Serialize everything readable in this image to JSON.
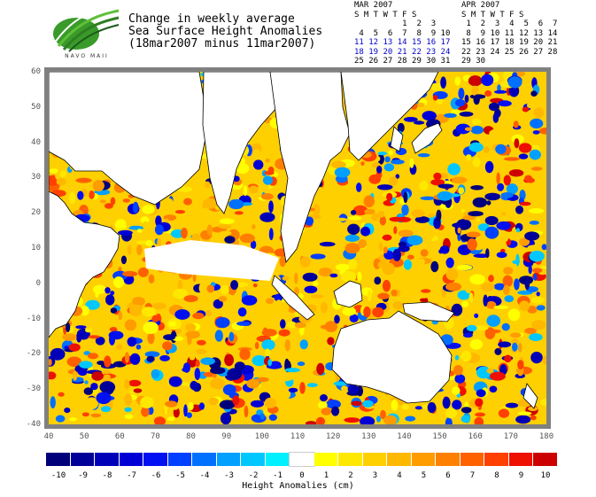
{
  "logo": {
    "text": "NAVO MAII"
  },
  "title": {
    "line1": "Change in weekly average",
    "line2": "Sea Surface Height Anomalies",
    "line3": "(18mar2007 minus 11mar2007)"
  },
  "calendars": [
    {
      "month": "MAR 2007",
      "dow": "S M T W T F S",
      "weeks": [
        "          1  2  3",
        " 4  5  6  7  8  9 10",
        "11 12 13 14 15 16 17",
        "18 19 20 21 22 23 24",
        "25 26 27 28 29 30 31"
      ],
      "highlight_weeks": [
        2,
        3
      ]
    },
    {
      "month": "APR 2007",
      "dow": "S M T W T F S",
      "weeks": [
        " 1  2  3  4  5  6  7",
        " 8  9 10 11 12 13 14",
        "15 16 17 18 19 20 21",
        "22 23 24 25 26 27 28",
        "29 30"
      ],
      "highlight_weeks": []
    }
  ],
  "map": {
    "lat_ticks": [
      "60",
      "50",
      "40",
      "30",
      "20",
      "10",
      "0",
      "-10",
      "-20",
      "-30",
      "-40"
    ],
    "lon_ticks": [
      "40",
      "50",
      "60",
      "70",
      "80",
      "90",
      "100",
      "110",
      "120",
      "130",
      "140",
      "150",
      "160",
      "170",
      "180"
    ]
  },
  "colorbar": {
    "title": "Height Anomalies (cm)",
    "labels": [
      "-10",
      "-9",
      "-8",
      "-7",
      "-6",
      "-5",
      "-4",
      "-3",
      "-2",
      "-1",
      "0",
      "1",
      "2",
      "3",
      "4",
      "5",
      "6",
      "7",
      "8",
      "9",
      "10"
    ],
    "colors": [
      "#00007a",
      "#000099",
      "#0000b8",
      "#0000d6",
      "#0010f0",
      "#0040ff",
      "#0070ff",
      "#00a0ff",
      "#00c8ff",
      "#00f0ff",
      "#ffffff",
      "#ffff00",
      "#ffe800",
      "#ffd000",
      "#ffb800",
      "#ff9c00",
      "#ff8000",
      "#ff6000",
      "#ff4000",
      "#ee1000",
      "#cc0000"
    ]
  }
}
